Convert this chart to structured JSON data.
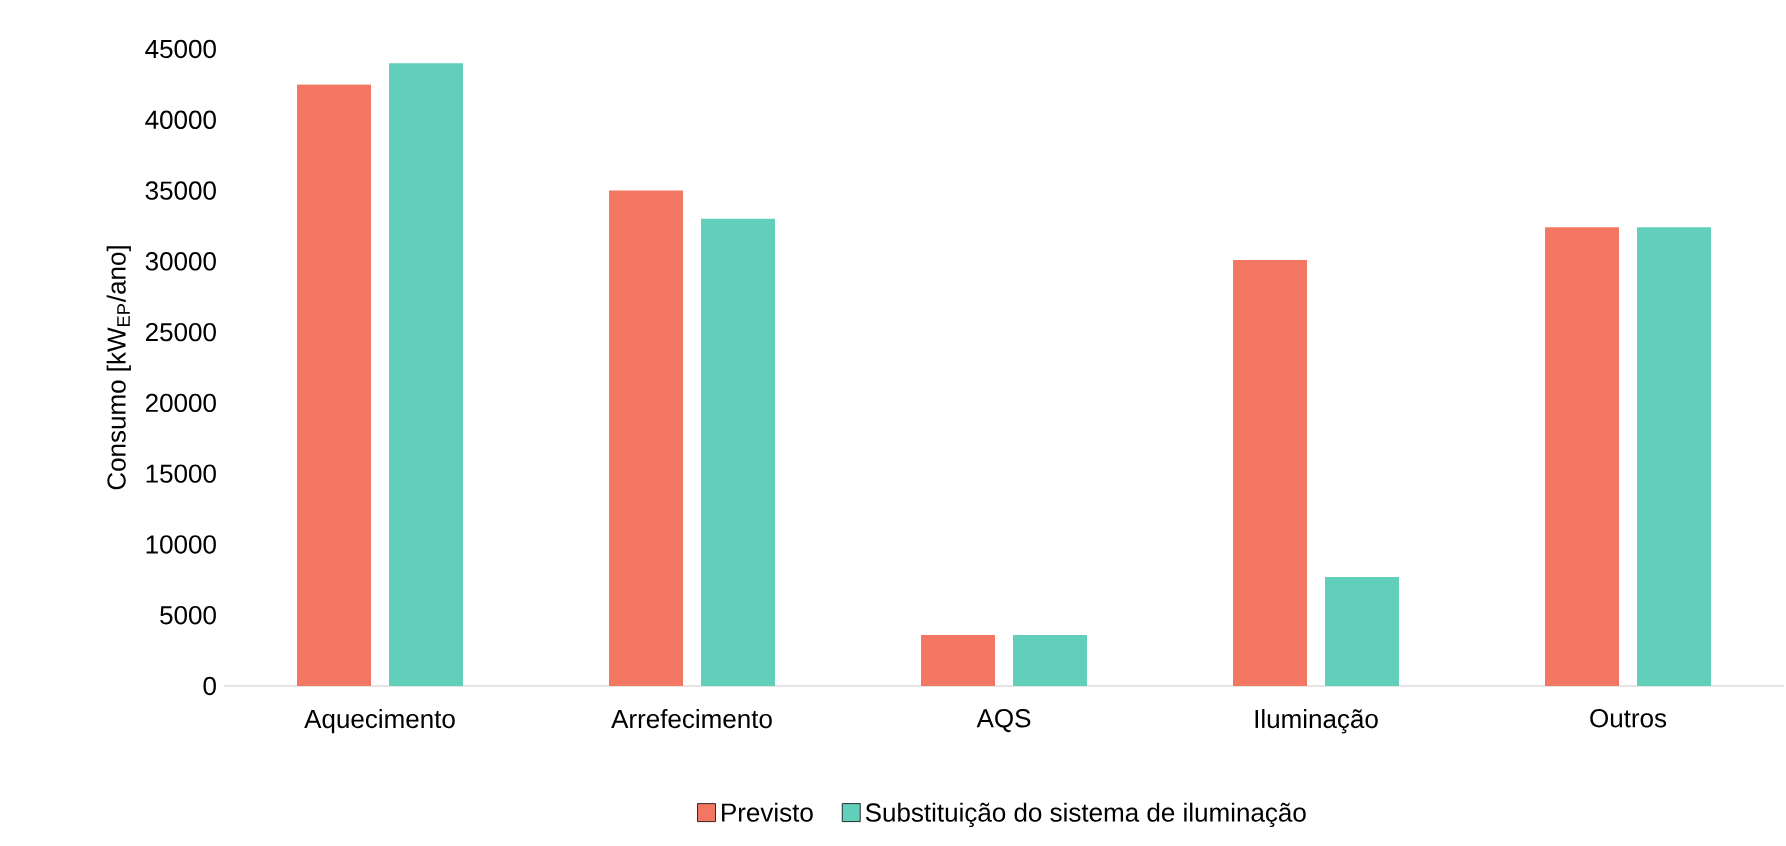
{
  "chart_data": {
    "type": "bar",
    "ylabel": "Consumo [kW$_{EP}$/ano]",
    "categories": [
      "Aquecimento",
      "Arrefecimento",
      "AQS",
      "Iluminação",
      "Outros"
    ],
    "series": [
      {
        "name": "Previsto",
        "color": "#f47764",
        "values": [
          42500,
          35000,
          3600,
          30100,
          32400
        ]
      },
      {
        "name": "Substituição do sistema de iluminação",
        "color": "#62cfbb",
        "values": [
          44000,
          33000,
          3600,
          7700,
          32400
        ]
      }
    ],
    "ylim": [
      0,
      45000
    ],
    "yticks": [
      0,
      5000,
      10000,
      15000,
      20000,
      25000,
      30000,
      35000,
      40000,
      45000
    ],
    "legend": "bottom"
  }
}
